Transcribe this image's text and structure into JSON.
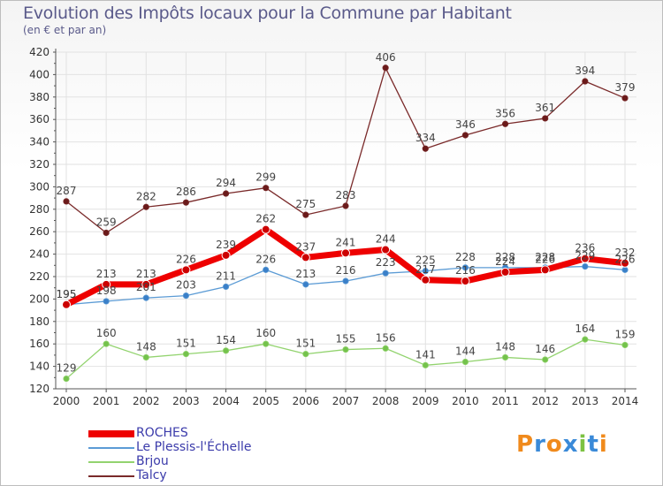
{
  "title": "Evolution des Impôts locaux pour la Commune par Habitant",
  "subtitle": "(en € et par an)",
  "logo_text": "Proxiti",
  "colors": {
    "grid": "#e2e2e2",
    "axis": "#555555",
    "tick_text": "#333333",
    "value_text": "#444444"
  },
  "chart_data": {
    "type": "line",
    "categories": [
      "2000",
      "2001",
      "2002",
      "2003",
      "2004",
      "2005",
      "2006",
      "2007",
      "2008",
      "2009",
      "2010",
      "2011",
      "2012",
      "2013",
      "2014"
    ],
    "ylim": [
      120,
      420
    ],
    "yticks": [
      120,
      140,
      160,
      180,
      200,
      220,
      240,
      260,
      280,
      300,
      320,
      340,
      360,
      380,
      400,
      420
    ],
    "grid": true,
    "legend_position": "bottom-left",
    "series": [
      {
        "name": "ROCHES",
        "color": "#ee0000",
        "marker": "#cc0000",
        "width": 7,
        "values": [
          195,
          213,
          213,
          226,
          239,
          262,
          237,
          241,
          244,
          217,
          216,
          224,
          226,
          236,
          232
        ]
      },
      {
        "name": "Le Plessis-l'Échelle",
        "color": "#5b9bd5",
        "marker": "#3a7fc8",
        "width": 1.3,
        "values": [
          195,
          198,
          201,
          203,
          211,
          226,
          213,
          216,
          223,
          225,
          228,
          228,
          228,
          229,
          226
        ]
      },
      {
        "name": "Brjou",
        "color": "#92d36e",
        "marker": "#74c24c",
        "width": 1.3,
        "values": [
          129,
          160,
          148,
          151,
          154,
          160,
          151,
          155,
          156,
          141,
          144,
          148,
          146,
          164,
          159
        ]
      },
      {
        "name": "Talcy",
        "color": "#7a2a2a",
        "marker": "#6a1a1a",
        "width": 1.3,
        "values": [
          287,
          259,
          282,
          286,
          294,
          299,
          275,
          283,
          406,
          334,
          346,
          356,
          361,
          394,
          379
        ]
      }
    ]
  }
}
